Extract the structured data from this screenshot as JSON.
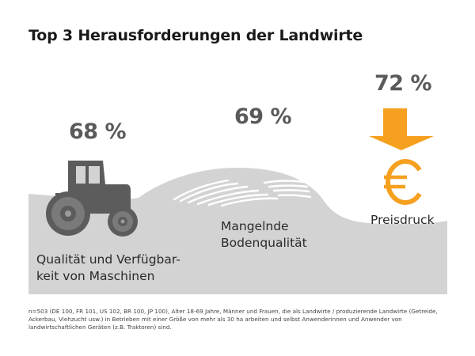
{
  "title": "Top 3 Herausforderungen der Landwirte",
  "chart_data": {
    "type": "bar",
    "title": "Top 3 Herausforderungen der Landwirte",
    "categories": [
      "Qualität und Verfügbarkeit von Maschinen",
      "Mangelnde Bodenqualität",
      "Preisdruck"
    ],
    "values": [
      68,
      69,
      72
    ],
    "unit": "%",
    "value_labels": [
      "68 %",
      "69 %",
      "72 %"
    ],
    "category_labels": [
      [
        "Qualität und Verfügbar-",
        "keit von Maschinen"
      ],
      [
        "Mangelnde",
        "Bodenqualität"
      ],
      [
        "Preisdruck"
      ]
    ]
  },
  "footnote": "n=503 (DE 100, FR 101, US 102, BR 100, JP 100), Alter 18-69 Jahre, Männer und Frauen, die als Landwirte / produzierende Landwirte (Getreide, Ackerbau, Viehzucht usw.) in Betrieben mit einer Größe von mehr als 30 ha arbeiten und selbst Anwenderinnen und Anwender von landwirtschaftlichen Geräten (z.B. Traktoren) sind.",
  "icons": [
    "tractor-icon",
    "field-furrows-icon",
    "down-arrow-icon",
    "euro-icon"
  ],
  "colors": {
    "landscape": "#d3d3d3",
    "tractor": "#5c5c5c",
    "accent": "#f5a01e",
    "text": "#2a2a2a",
    "value_text": "#5a5a5a"
  }
}
